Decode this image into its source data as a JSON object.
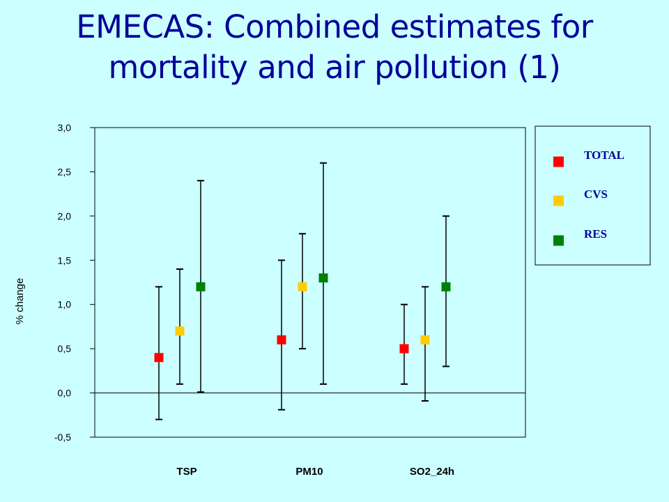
{
  "slide": {
    "title_line1": "EMECAS: Combined estimates for",
    "title_line2": "mortality and air pollution (1)"
  },
  "chart_data": {
    "type": "scatter",
    "subtype": "error-bar",
    "categories": [
      "TSP",
      "PM10",
      "SO2_24h"
    ],
    "ylabel": "% change",
    "ylim": [
      -0.5,
      3.0
    ],
    "y_ticks": [
      "3,0",
      "2,5",
      "2,0",
      "1,5",
      "1,0",
      "0,5",
      "0,0",
      "-0,5"
    ],
    "y_tick_values": [
      3.0,
      2.5,
      2.0,
      1.5,
      1.0,
      0.5,
      0.0,
      -0.5
    ],
    "legend_position": "right",
    "series": [
      {
        "name": "TOTAL",
        "color": "#ff0000",
        "values": [
          0.4,
          0.6,
          0.5
        ],
        "lower": [
          -0.3,
          -0.19,
          0.1
        ],
        "upper": [
          1.2,
          1.5,
          1.0
        ]
      },
      {
        "name": "CVS",
        "color": "#ffcc00",
        "values": [
          0.7,
          1.2,
          0.6
        ],
        "lower": [
          0.1,
          0.5,
          -0.09
        ],
        "upper": [
          1.4,
          1.8,
          1.2
        ]
      },
      {
        "name": "RES",
        "color": "#008000",
        "values": [
          1.2,
          1.3,
          1.2
        ],
        "lower": [
          0.01,
          0.1,
          0.3
        ],
        "upper": [
          2.4,
          2.6,
          2.0
        ]
      }
    ]
  }
}
